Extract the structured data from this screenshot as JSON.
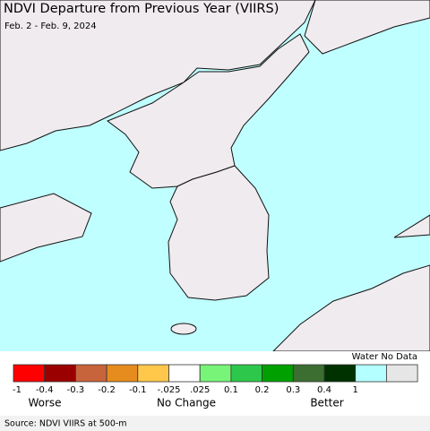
{
  "header": {
    "title": "NDVI Departure from Previous Year (VIIRS)",
    "subtitle": "Feb. 2 - Feb. 9, 2024"
  },
  "legend": {
    "colors": [
      "#ff0000",
      "#9b0000",
      "#c8643c",
      "#e68c1e",
      "#ffc84b",
      "#ffffff",
      "#78f578",
      "#2dc84b",
      "#00a000",
      "#3c6e32",
      "#003200",
      "#b4ffff",
      "#e6e6e6"
    ],
    "water_label": "Water No Data",
    "ticks": [
      "-1",
      "-0.4",
      "-0.3",
      "-0.2",
      "-0.1",
      "-.025",
      ".025",
      "0.1",
      "0.2",
      "0.3",
      "0.4",
      "1"
    ],
    "groups": [
      "Worse",
      "No Change",
      "Better"
    ]
  },
  "source": "Source: NDVI VIIRS at 500-m"
}
